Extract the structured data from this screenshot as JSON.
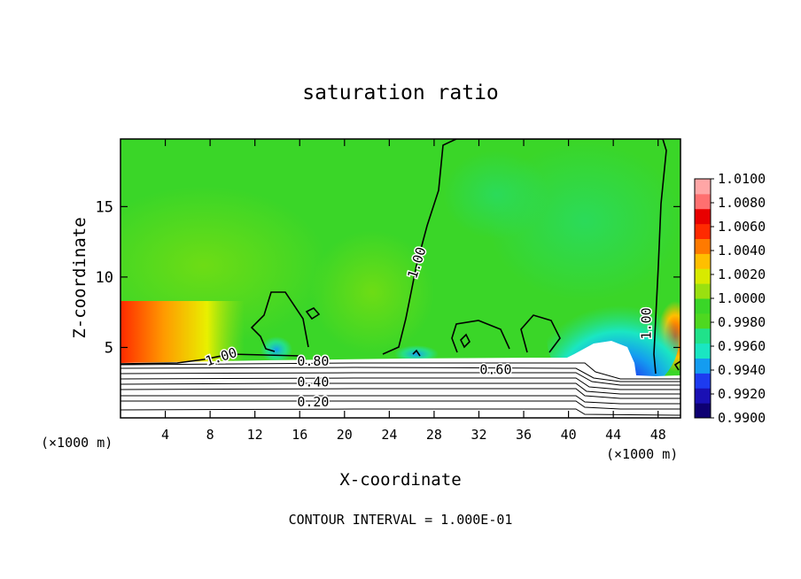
{
  "chart_data": {
    "type": "heatmap",
    "title": "saturation ratio",
    "xlabel": "X-coordinate",
    "ylabel": "Z-coordinate",
    "x_unit_left": "(×1000 m)",
    "x_unit_right": "(×1000 m)",
    "xlim": [
      0,
      50
    ],
    "ylim": [
      0,
      19.8
    ],
    "x_ticks": [
      4,
      8,
      12,
      16,
      20,
      24,
      28,
      32,
      36,
      40,
      44,
      48
    ],
    "x_tick_labels": [
      "4",
      "8",
      "12",
      "16",
      "20",
      "24",
      "28",
      "32",
      "36",
      "40",
      "44",
      "48"
    ],
    "y_ticks": [
      5,
      10,
      15
    ],
    "y_tick_labels": [
      "5",
      "10",
      "15"
    ],
    "colorbar": {
      "min": 0.99,
      "max": 1.01,
      "labels": [
        "1.0100",
        "1.0080",
        "1.0060",
        "1.0040",
        "1.0020",
        "1.0000",
        "0.9980",
        "0.9960",
        "0.9940",
        "0.9920",
        "0.9900"
      ],
      "colors": [
        "#0e0072",
        "#1a10b4",
        "#1d3bf0",
        "#149cf0",
        "#1ae6c2",
        "#20e28a",
        "#4ed820",
        "#3ad628",
        "#9ae010",
        "#d8ea00",
        "#ffbf00",
        "#ff7a00",
        "#ff2a00",
        "#e80000",
        "#ff7070",
        "#ffa6a6"
      ]
    },
    "contour_labels": [
      {
        "text": "1.00",
        "x": 26.5,
        "y": 11.0,
        "angle": -72
      },
      {
        "text": "1.00",
        "x": 9.0,
        "y": 4.3,
        "angle": -18
      },
      {
        "text": "0.80",
        "x": 17.2,
        "y": 4.0,
        "angle": 0
      },
      {
        "text": "0.60",
        "x": 33.5,
        "y": 3.4,
        "angle": 0
      },
      {
        "text": "0.40",
        "x": 17.2,
        "y": 2.5,
        "angle": 0
      },
      {
        "text": "0.20",
        "x": 17.2,
        "y": 1.1,
        "angle": 0
      },
      {
        "text": "1.00",
        "x": 47.0,
        "y": 6.7,
        "angle": -90
      }
    ],
    "footer": "CONTOUR INTERVAL = 1.000E-01"
  }
}
